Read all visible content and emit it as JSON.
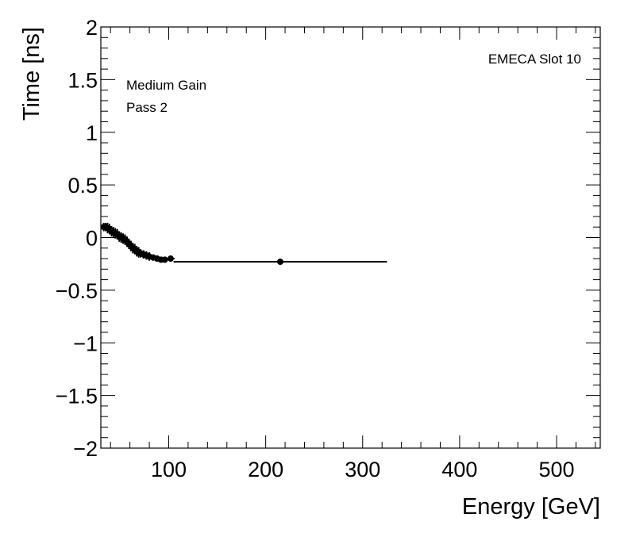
{
  "chart_data": {
    "type": "scatter",
    "title": "",
    "xlabel": "Energy [GeV]",
    "ylabel": "Time [ns]",
    "xlim": [
      30,
      545
    ],
    "ylim": [
      -2,
      2
    ],
    "xticks": [
      100,
      200,
      300,
      400,
      500
    ],
    "yticks": [
      -2,
      -1.5,
      -1,
      -0.5,
      0,
      0.5,
      1,
      1.5,
      2
    ],
    "xtick_labels": [
      "100",
      "200",
      "300",
      "400",
      "500"
    ],
    "ytick_labels": [
      "−2",
      "−1.5",
      "−1",
      "−0.5",
      "0",
      "0.5",
      "1",
      "1.5",
      "2"
    ],
    "grid": false,
    "annotations": {
      "top_right": "EMECA Slot 10",
      "gain": "Medium Gain",
      "pass": "Pass 2"
    },
    "series": [
      {
        "points": [
          {
            "x": 33,
            "y": 0.1,
            "xerr": 1.5,
            "yerr": 0.04
          },
          {
            "x": 35,
            "y": 0.1,
            "xerr": 1.5,
            "yerr": 0.04
          },
          {
            "x": 37,
            "y": 0.09,
            "xerr": 1.5,
            "yerr": 0.05
          },
          {
            "x": 39,
            "y": 0.08,
            "xerr": 1.5,
            "yerr": 0.05
          },
          {
            "x": 41,
            "y": 0.06,
            "xerr": 1.5,
            "yerr": 0.05
          },
          {
            "x": 43,
            "y": 0.05,
            "xerr": 1.5,
            "yerr": 0.05
          },
          {
            "x": 45,
            "y": 0.04,
            "xerr": 1.5,
            "yerr": 0.05
          },
          {
            "x": 47,
            "y": 0.03,
            "xerr": 1.5,
            "yerr": 0.05
          },
          {
            "x": 49,
            "y": 0.01,
            "xerr": 1.5,
            "yerr": 0.05
          },
          {
            "x": 51,
            "y": 0.0,
            "xerr": 1.5,
            "yerr": 0.05
          },
          {
            "x": 53,
            "y": -0.01,
            "xerr": 1.5,
            "yerr": 0.05
          },
          {
            "x": 55,
            "y": -0.02,
            "xerr": 1.5,
            "yerr": 0.05
          },
          {
            "x": 57,
            "y": -0.04,
            "xerr": 1.5,
            "yerr": 0.05
          },
          {
            "x": 59,
            "y": -0.06,
            "xerr": 1.5,
            "yerr": 0.05
          },
          {
            "x": 61,
            "y": -0.08,
            "xerr": 1.5,
            "yerr": 0.05
          },
          {
            "x": 63,
            "y": -0.1,
            "xerr": 1.5,
            "yerr": 0.05
          },
          {
            "x": 65,
            "y": -0.11,
            "xerr": 1.5,
            "yerr": 0.05
          },
          {
            "x": 67,
            "y": -0.13,
            "xerr": 1.5,
            "yerr": 0.05
          },
          {
            "x": 69,
            "y": -0.14,
            "xerr": 1.5,
            "yerr": 0.05
          },
          {
            "x": 71,
            "y": -0.15,
            "xerr": 1.5,
            "yerr": 0.04
          },
          {
            "x": 74,
            "y": -0.16,
            "xerr": 2,
            "yerr": 0.04
          },
          {
            "x": 77,
            "y": -0.17,
            "xerr": 2,
            "yerr": 0.04
          },
          {
            "x": 80,
            "y": -0.18,
            "xerr": 2,
            "yerr": 0.04
          },
          {
            "x": 84,
            "y": -0.19,
            "xerr": 2.5,
            "yerr": 0.03
          },
          {
            "x": 88,
            "y": -0.2,
            "xerr": 2.5,
            "yerr": 0.03
          },
          {
            "x": 92,
            "y": -0.21,
            "xerr": 3,
            "yerr": 0.02
          },
          {
            "x": 96,
            "y": -0.21,
            "xerr": 3,
            "yerr": 0.02
          },
          {
            "x": 102,
            "y": -0.2,
            "xerr": 4,
            "yerr": 0.02
          },
          {
            "x": 215,
            "y": -0.23,
            "xerr": 110,
            "yerr": 0.01
          }
        ]
      }
    ]
  }
}
